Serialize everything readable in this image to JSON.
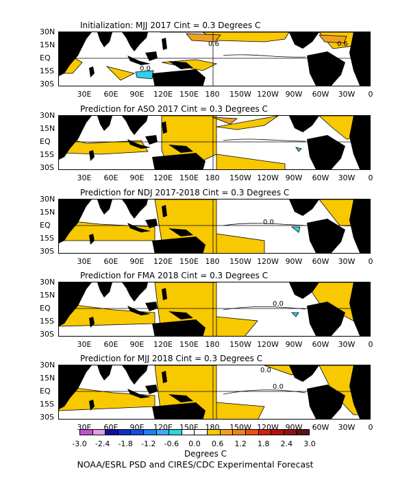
{
  "panels": [
    {
      "title": "Initialization: MJJ 2017  Cint = 0.3 Degrees C",
      "contour_labels": [
        "0.6",
        "0.6",
        "0.0"
      ]
    },
    {
      "title": "Prediction for ASO 2017  Cint = 0.3 Degrees C",
      "contour_labels": []
    },
    {
      "title": "Prediction for NDJ 2017-2018  Cint = 0.3 Degrees C",
      "contour_labels": [
        "0.0"
      ]
    },
    {
      "title": "Prediction for FMA 2018  Cint = 0.3 Degrees C",
      "contour_labels": [
        "0.0"
      ]
    },
    {
      "title": "Prediction for MJJ 2018  Cint = 0.3 Degrees C",
      "contour_labels": [
        "0.0",
        "0.0"
      ]
    }
  ],
  "lat_labels": [
    "30N",
    "15N",
    "EQ",
    "15S",
    "30S"
  ],
  "lon_labels": [
    "30E",
    "60E",
    "90E",
    "120E",
    "150E",
    "180",
    "150W",
    "120W",
    "90W",
    "60W",
    "30W",
    "0"
  ],
  "legend": {
    "ticks": [
      "-3.0",
      "-2.4",
      "-1.8",
      "-1.2",
      "-0.6",
      "0.0",
      "0.6",
      "1.2",
      "1.8",
      "2.4",
      "3.0"
    ],
    "colors": [
      "#c050d0",
      "#e0a0e0",
      "#1010a0",
      "#1030c8",
      "#1050e0",
      "#2080f0",
      "#40a8f8",
      "#30d0e8",
      "#ffffff",
      "#ffffff",
      "#f8c800",
      "#f0a020",
      "#f08020",
      "#e85018",
      "#d02010",
      "#b01010",
      "#901010",
      "#601010"
    ],
    "units": "Degrees C"
  },
  "credit": "NOAA/ESRL PSD and CIRES/CDC Experimental Forecast"
}
